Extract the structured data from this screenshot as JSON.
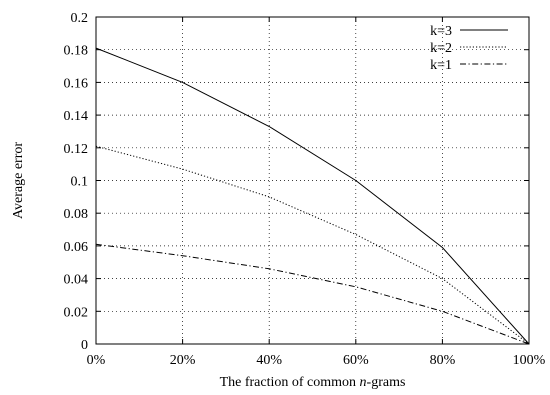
{
  "chart_data": {
    "type": "line",
    "xlabel_prefix": "The fraction of common ",
    "xlabel_italic": "n",
    "xlabel_suffix": "-grams",
    "ylabel": "Average error",
    "x": [
      0,
      20,
      40,
      60,
      80,
      100
    ],
    "x_tick_labels": [
      "0%",
      "20%",
      "40%",
      "60%",
      "80%",
      "100%"
    ],
    "xlim": [
      0,
      100
    ],
    "ylim": [
      0,
      0.2
    ],
    "y_ticks": [
      0,
      0.02,
      0.04,
      0.06,
      0.08,
      0.1,
      0.12,
      0.14,
      0.16,
      0.18,
      0.2
    ],
    "y_tick_labels": [
      "0",
      "0.02",
      "0.04",
      "0.06",
      "0.08",
      "0.1",
      "0.12",
      "0.14",
      "0.16",
      "0.18",
      "0.2"
    ],
    "grid": true,
    "legend_position": "top-right",
    "series": [
      {
        "name": "k=3",
        "values": [
          0.181,
          0.16,
          0.133,
          0.1,
          0.059,
          0.0
        ],
        "style": "solid"
      },
      {
        "name": "k=2",
        "values": [
          0.121,
          0.107,
          0.09,
          0.067,
          0.04,
          0.0
        ],
        "style": "dotted"
      },
      {
        "name": "k=1",
        "values": [
          0.061,
          0.054,
          0.046,
          0.035,
          0.02,
          0.0
        ],
        "style": "dashdot"
      }
    ]
  }
}
